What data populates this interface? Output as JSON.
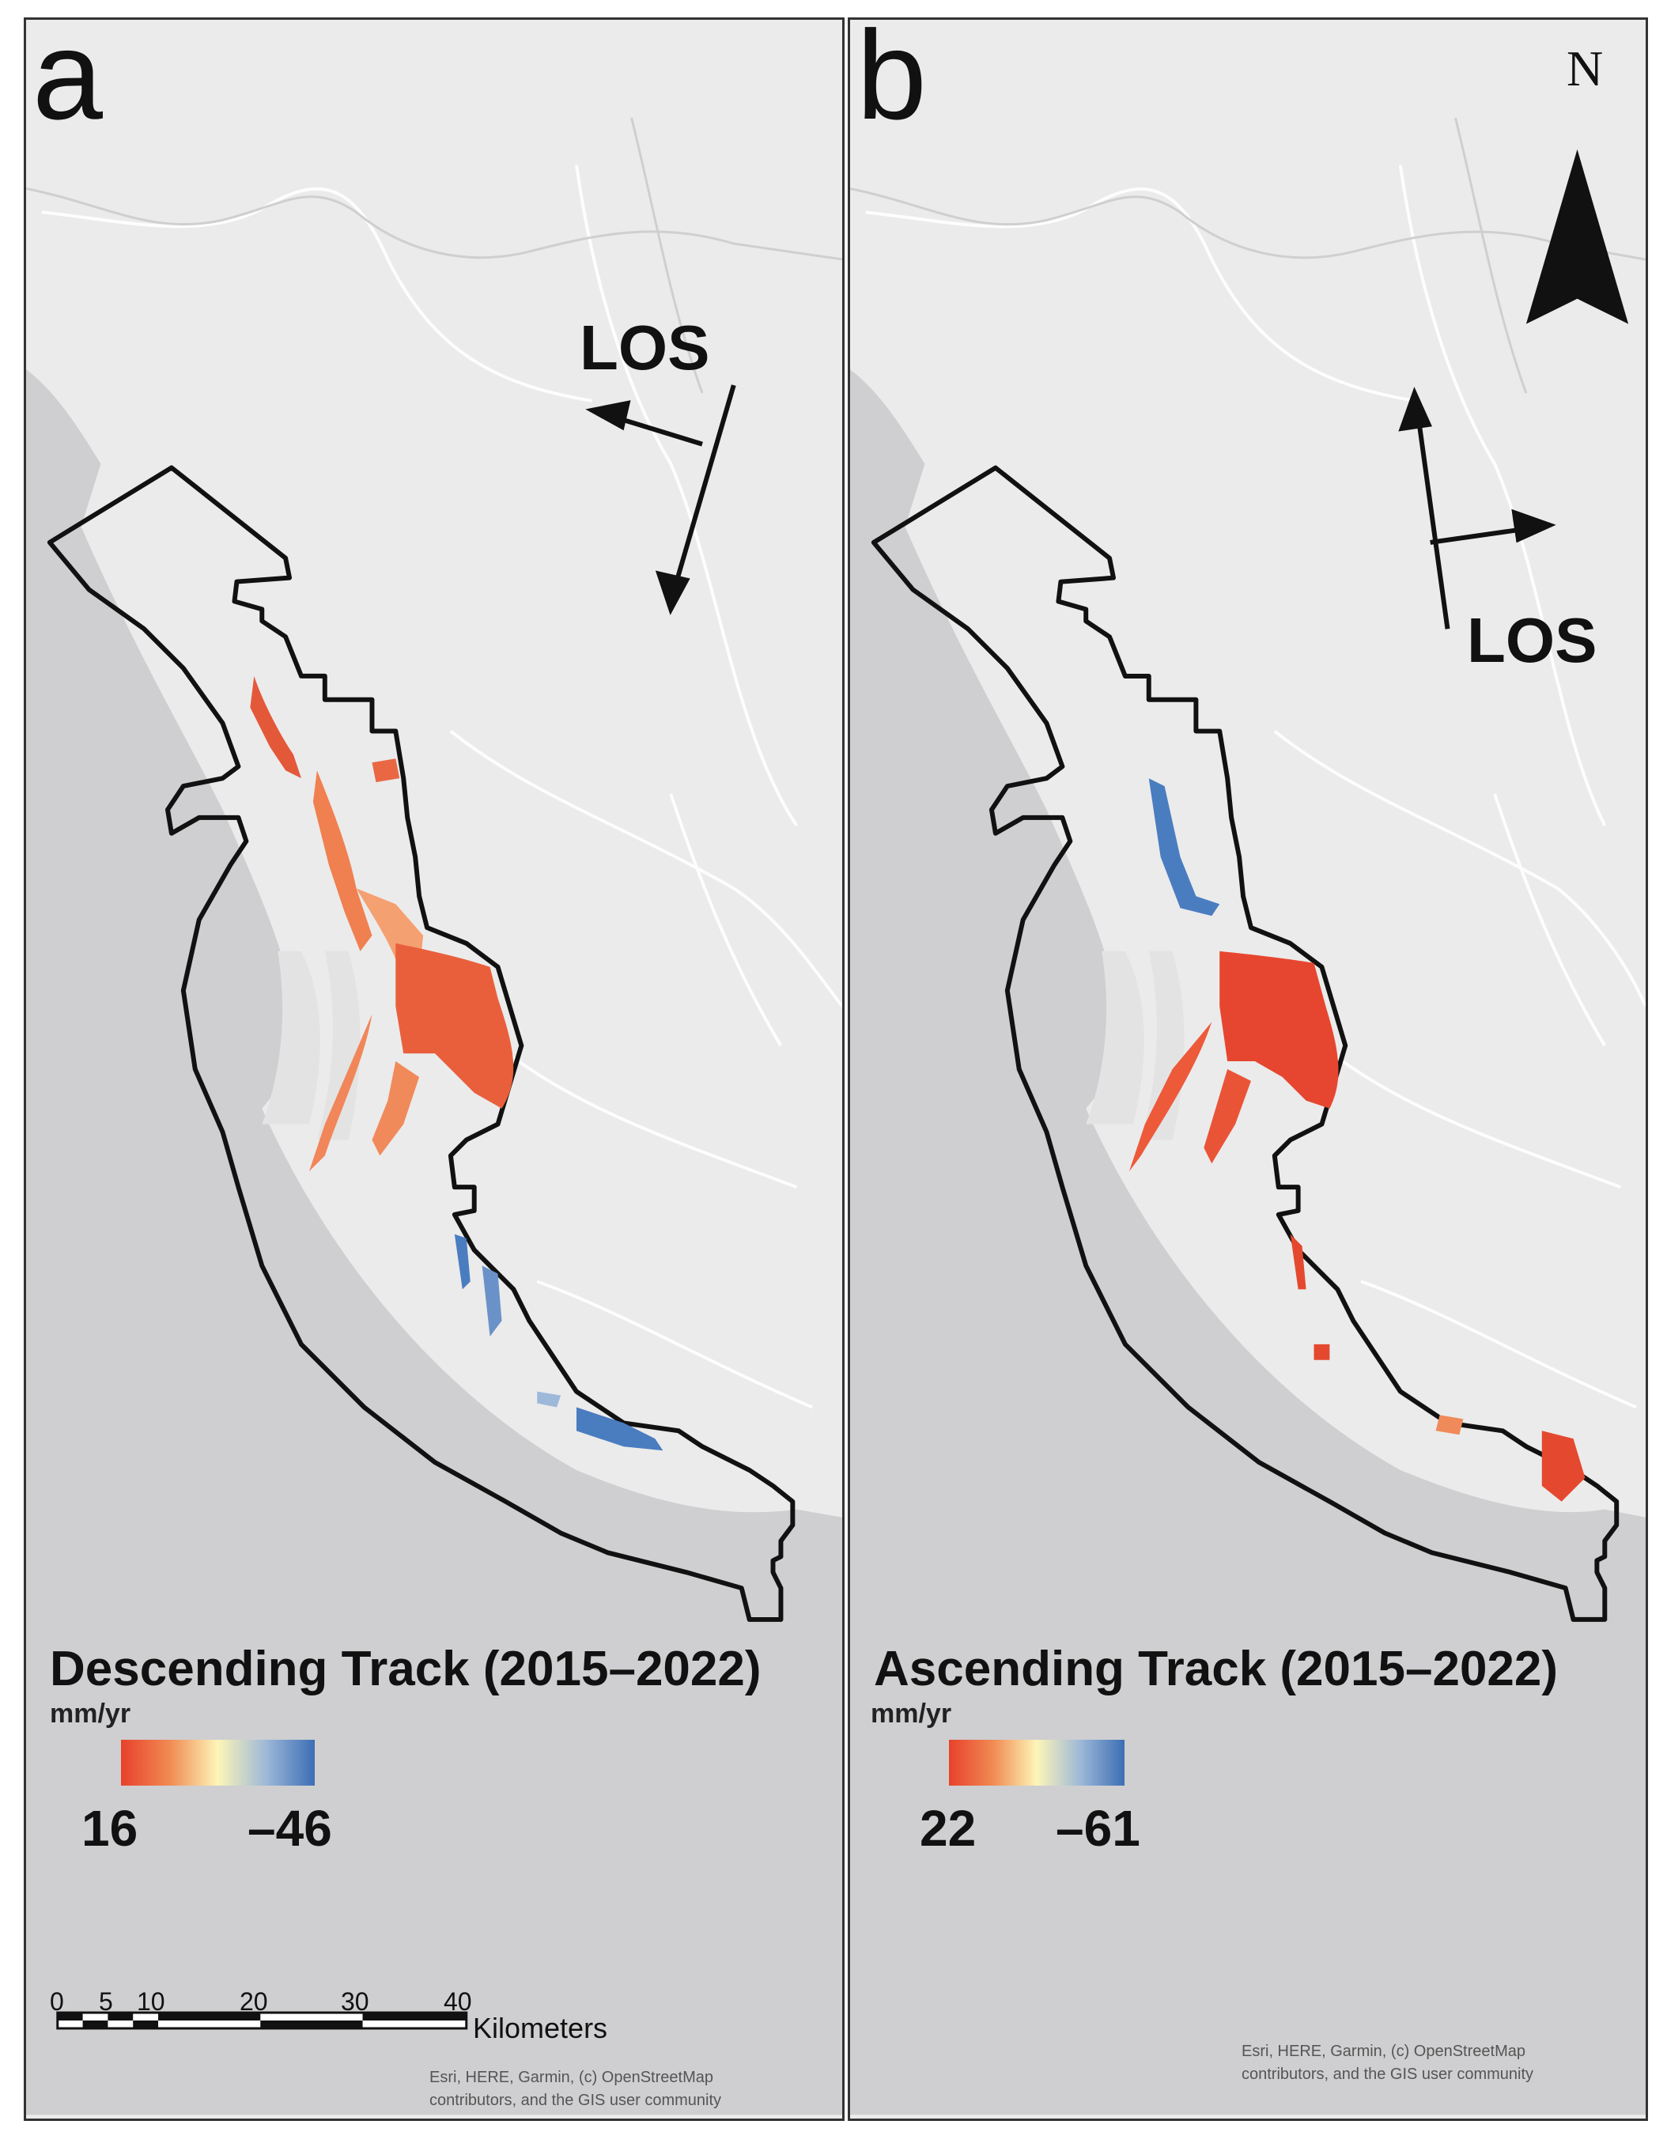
{
  "panels": [
    {
      "letter": "a",
      "los_label": "LOS",
      "title": "Descending Track (2015–2022)",
      "units": "mm/yr",
      "colorbar": {
        "min_label": "16",
        "max_label": "–46",
        "colors": [
          "#e8412c",
          "#f08a52",
          "#fdf5b8",
          "#9db8d8",
          "#3c6eb4"
        ]
      },
      "credits": [
        "Esri, HERE, Garmin, (c) OpenStreetMap",
        "contributors, and the GIS user community"
      ]
    },
    {
      "letter": "b",
      "los_label": "LOS",
      "title": "Ascending Track (2015–2022)",
      "units": "mm/yr",
      "colorbar": {
        "min_label": "22",
        "max_label": "–61",
        "colors": [
          "#e8412c",
          "#f08a52",
          "#fdf5b8",
          "#9db8d8",
          "#3c6eb4"
        ]
      },
      "credits": [
        "Esri, HERE, Garmin, (c) OpenStreetMap",
        "contributors, and the GIS user community"
      ]
    }
  ],
  "north_arrow": {
    "label": "N"
  },
  "scale_bar": {
    "ticks": [
      "0",
      "5",
      "10",
      "20",
      "30",
      "40"
    ],
    "unit": "Kilometers"
  },
  "colors": {
    "sea": "#cfcfd1",
    "land": "#ebebeb",
    "boundary": "#111111",
    "uplift": "#e8512f",
    "subsidence": "#3c6eb4"
  }
}
